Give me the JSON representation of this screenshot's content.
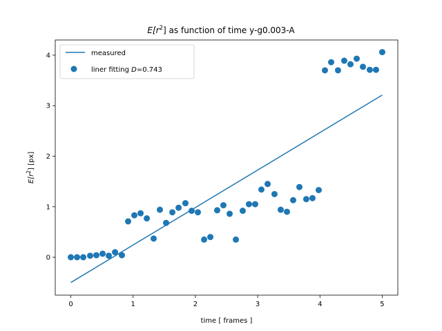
{
  "chart_data": {
    "type": "scatter",
    "title_parts": {
      "e": "E[r",
      "sup": "2",
      "rest": "] as function of time y-g0.003-A"
    },
    "xlabel": "time [ frames ]",
    "ylabel_parts": {
      "e": "E[r",
      "sup": "2",
      "rest": "] [px]"
    },
    "xlim": [
      -0.25,
      5.25
    ],
    "ylim": [
      -0.75,
      4.3
    ],
    "xticks": [
      0,
      1,
      2,
      3,
      4,
      5
    ],
    "yticks": [
      0,
      1,
      2,
      3,
      4
    ],
    "grid": false,
    "legend_position": "upper-left",
    "series": [
      {
        "name": "measured",
        "kind": "line",
        "color": "#1f77b4",
        "x": [
          0,
          5
        ],
        "y": [
          -0.5,
          3.21
        ]
      },
      {
        "name_parts": {
          "text": "liner fitting ",
          "var": "D",
          "value": "=0.743"
        },
        "kind": "scatter",
        "color": "#1f77b4",
        "x": [
          0.0,
          0.1,
          0.2,
          0.31,
          0.41,
          0.51,
          0.61,
          0.71,
          0.82,
          0.92,
          1.02,
          1.12,
          1.22,
          1.33,
          1.43,
          1.53,
          1.63,
          1.73,
          1.84,
          1.94,
          2.04,
          2.14,
          2.24,
          2.35,
          2.45,
          2.55,
          2.65,
          2.76,
          2.86,
          2.96,
          3.06,
          3.16,
          3.27,
          3.37,
          3.47,
          3.57,
          3.67,
          3.78,
          3.88,
          3.98,
          4.08,
          4.18,
          4.29,
          4.39,
          4.49,
          4.59,
          4.69,
          4.8,
          4.9,
          5.0
        ],
        "y": [
          0.0,
          0.0,
          0.0,
          0.03,
          0.04,
          0.07,
          0.03,
          0.1,
          0.04,
          0.71,
          0.83,
          0.87,
          0.77,
          0.37,
          0.94,
          0.68,
          0.89,
          0.98,
          1.07,
          0.92,
          0.89,
          0.35,
          0.4,
          0.93,
          1.03,
          0.86,
          0.35,
          0.92,
          1.05,
          1.05,
          1.34,
          1.45,
          1.25,
          0.94,
          0.9,
          1.13,
          1.39,
          1.15,
          1.17,
          1.33,
          3.7,
          3.86,
          3.7,
          3.89,
          3.82,
          3.93,
          3.77,
          3.71,
          3.71,
          4.06
        ]
      }
    ]
  }
}
